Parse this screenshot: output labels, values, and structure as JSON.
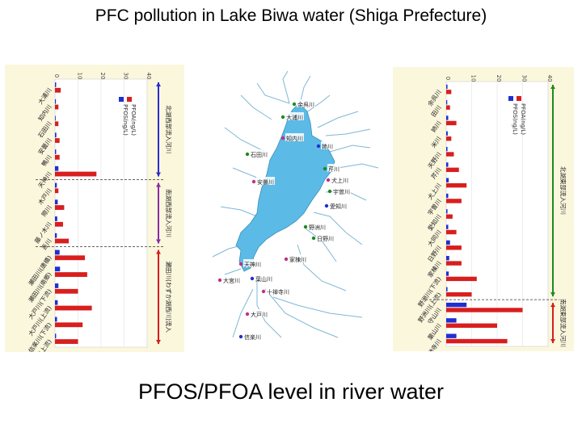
{
  "title": "PFC pollution in Lake Biwa water (Shiga Prefecture)",
  "caption": "PFOS/PFOA level in river water",
  "colors": {
    "pfos": "#1f2fd0",
    "pfoa": "#d81e1e",
    "panel_bg": "#fbf7dd",
    "lake": "#5bbbe6",
    "river": "#7fb7d6"
  },
  "chart_data": [
    {
      "type": "bar",
      "orientation": "horizontal",
      "x_ticks": [
        "0",
        "10",
        "20",
        "30",
        "40"
      ],
      "xlim": [
        0,
        40
      ],
      "legend": [
        "PFOS(ng/L)",
        "PFOA(ng/L)"
      ],
      "region_labels": [
        "北湖西部流入河川",
        "南湖西部流入河川",
        "瀬田川(わずか湖西川)流入"
      ],
      "categories": [
        "大浦川",
        "知内川",
        "石田川",
        "安曇川",
        "鴨川",
        "天神川",
        "木戸川",
        "際川",
        "藤ノ木川",
        "吾川",
        "瀬田川(唐橋)",
        "瀬田川(南郷)",
        "大戸川(下流)",
        "大戸川(上流)",
        "信楽川(下流)",
        "信楽川(上流)"
      ],
      "series": [
        {
          "name": "PFOS(ng/L)",
          "values": [
            0.5,
            0.4,
            0.3,
            0.6,
            0.5,
            1.5,
            0.8,
            1.2,
            1.0,
            0.8,
            2.0,
            2.2,
            1.5,
            1.2,
            0.9,
            0.5
          ]
        },
        {
          "name": "PFOA(ng/L)",
          "values": [
            2.5,
            1.5,
            1.5,
            2.0,
            2.0,
            18.0,
            1.5,
            4.0,
            3.5,
            6.0,
            13.0,
            14.0,
            10.0,
            16.0,
            12.0,
            10.0
          ]
        }
      ]
    },
    {
      "type": "bar",
      "orientation": "horizontal",
      "x_ticks": [
        "0",
        "10",
        "20",
        "30",
        "40"
      ],
      "xlim": [
        0,
        40
      ],
      "legend": [
        "PFOS(ng/L)",
        "PFOA(ng/L)"
      ],
      "region_labels": [
        "北湖東部流入河川",
        "南湖東部流入河川"
      ],
      "categories": [
        "余呉川",
        "田川",
        "姉川",
        "米川",
        "天野川",
        "芹川",
        "犬上川",
        "宇曽川",
        "愛知川",
        "大同川",
        "日野川",
        "家棟川",
        "野洲川(下流)",
        "野洲川(上流)",
        "守山川",
        "葉山川",
        "十禅寺川"
      ],
      "series": [
        {
          "name": "PFOS(ng/L)",
          "values": [
            0.5,
            0.4,
            0.8,
            0.6,
            0.5,
            0.8,
            1.0,
            0.8,
            0.5,
            0.8,
            1.5,
            1.2,
            1.0,
            0.5,
            8.0,
            4.0,
            4.0
          ]
        },
        {
          "name": "PFOA(ng/L)",
          "values": [
            2.0,
            1.5,
            4.0,
            2.0,
            3.0,
            5.0,
            8.0,
            6.0,
            2.5,
            4.0,
            6.0,
            6.0,
            12.0,
            10.0,
            30.0,
            20.0,
            24.0
          ]
        }
      ]
    }
  ],
  "map": {
    "place_labels": [
      "大浦川",
      "知内川",
      "余呉川",
      "姉川",
      "石田川",
      "安曇川",
      "芹川",
      "犬上川",
      "宇曽川",
      "愛知川",
      "日野川",
      "家棟川",
      "野洲川",
      "天神川",
      "大宮川",
      "葉山川",
      "十禅寺川",
      "大戸川",
      "信楽川"
    ]
  }
}
